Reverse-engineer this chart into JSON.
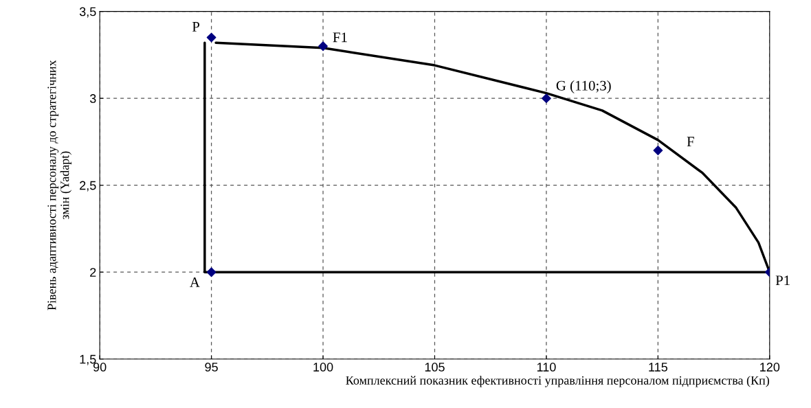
{
  "chart_data": {
    "type": "scatter",
    "xlabel": "Комплексний показник ефективності управління персоналом підприємства (Кп)",
    "ylabel": "Рівень адаптивності персоналу до стратегічних\nзмін (Yadapt)",
    "x": [
      95,
      100,
      110,
      115,
      120,
      95
    ],
    "series": [
      {
        "color": "#000080",
        "values": [
          3.35,
          3.3,
          3,
          2.7,
          2,
          2
        ],
        "marker": "diamond"
      },
      {
        "type": "line",
        "color": "#000000",
        "x": [
          95.2,
          100,
          105,
          110,
          112.5,
          115,
          117,
          118.5,
          119.5,
          120
        ],
        "values": [
          3.32,
          3.29,
          3.19,
          3.03,
          2.93,
          2.76,
          2.57,
          2.37,
          2.17,
          2.0
        ],
        "marker": "none"
      },
      {
        "type": "line",
        "color": "#000000",
        "x": [
          94.7,
          94.7,
          120
        ],
        "values": [
          3.32,
          2.0,
          2.0
        ],
        "marker": "none"
      }
    ],
    "annotations": [
      {
        "text": "P",
        "x": 95,
        "y": 3.35
      },
      {
        "text": "F1",
        "x": 100,
        "y": 3.3
      },
      {
        "text": "G (110;3)",
        "x": 110,
        "y": 3
      },
      {
        "text": "F",
        "x": 115,
        "y": 2.7
      },
      {
        "text": "A",
        "x": 95,
        "y": 2
      },
      {
        "text": "P1",
        "x": 120,
        "y": 2
      }
    ],
    "xlim": [
      90,
      120
    ],
    "xticks": [
      90,
      95,
      100,
      105,
      110,
      115,
      120
    ],
    "ylim": [
      1.5,
      3.5
    ],
    "yticks": [
      {
        "value": 1.5,
        "label": "1,5"
      },
      2,
      {
        "value": 2.5,
        "label": "2,5"
      },
      3,
      {
        "value": 3.5,
        "label": "3,5"
      }
    ],
    "grid": true,
    "legend": false
  }
}
